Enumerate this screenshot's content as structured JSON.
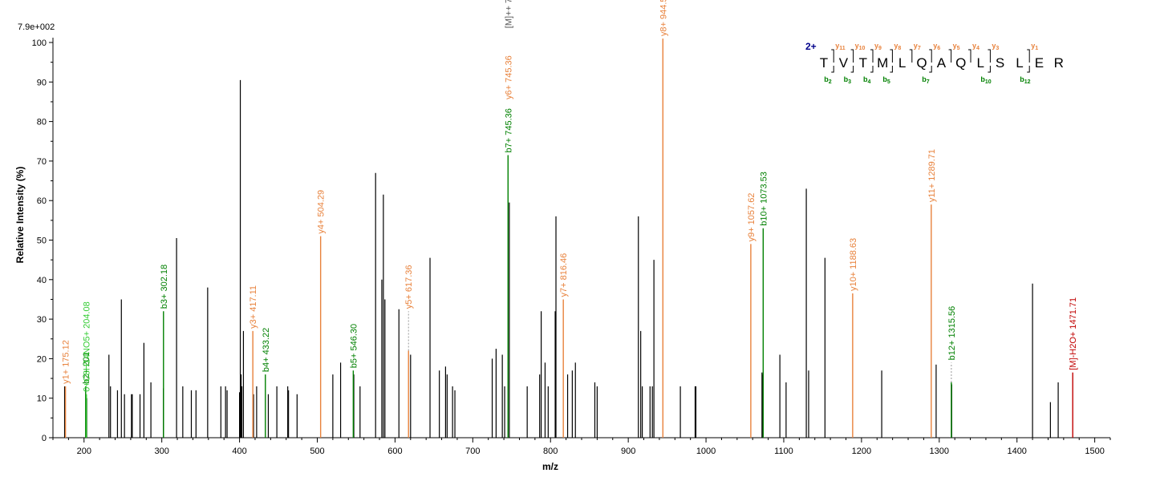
{
  "chart_data": {
    "type": "bar",
    "max_intensity_label": "7.9e+002",
    "xlabel": "m/z",
    "ylabel": "Relative   Intensity (%)",
    "xlim": [
      160,
      1520
    ],
    "ylim": [
      0,
      100
    ],
    "x_ticks": [
      200,
      300,
      400,
      500,
      600,
      700,
      800,
      900,
      1000,
      1100,
      1200,
      1300,
      1400,
      1500
    ],
    "y_ticks": [
      0,
      10,
      20,
      30,
      40,
      50,
      60,
      70,
      80,
      90,
      100
    ],
    "colors": {
      "b": "#008000",
      "y": "#e8823c",
      "other": "#000000",
      "precursor": "#555555",
      "neutral_loss": "#c00000",
      "lightgreen": "#33cc33"
    },
    "unlabeled_peaks": [
      [
        175.0,
        13
      ],
      [
        203.5,
        10
      ],
      [
        232,
        21
      ],
      [
        234,
        13
      ],
      [
        243,
        12
      ],
      [
        248,
        35
      ],
      [
        252,
        11
      ],
      [
        261,
        11
      ],
      [
        262,
        11
      ],
      [
        272,
        11
      ],
      [
        277,
        24
      ],
      [
        286,
        14
      ],
      [
        302,
        12.5
      ],
      [
        319,
        50.5
      ],
      [
        327,
        13
      ],
      [
        338,
        12
      ],
      [
        344,
        12
      ],
      [
        359,
        38
      ],
      [
        376,
        13
      ],
      [
        382,
        13
      ],
      [
        384,
        12
      ],
      [
        400,
        11.5
      ],
      [
        401,
        90.5
      ],
      [
        402,
        16
      ],
      [
        403,
        13
      ],
      [
        405,
        27
      ],
      [
        418,
        11
      ],
      [
        422,
        13
      ],
      [
        437,
        11
      ],
      [
        448,
        13
      ],
      [
        462,
        13
      ],
      [
        463,
        12
      ],
      [
        474,
        11
      ],
      [
        520,
        16
      ],
      [
        530,
        19
      ],
      [
        547,
        16
      ],
      [
        555,
        13
      ],
      [
        575,
        67
      ],
      [
        583,
        40
      ],
      [
        585,
        61.5
      ],
      [
        587,
        35
      ],
      [
        605,
        32.5
      ],
      [
        620,
        21
      ],
      [
        645,
        45.5
      ],
      [
        657,
        17
      ],
      [
        665,
        18
      ],
      [
        667,
        16
      ],
      [
        674,
        13
      ],
      [
        677,
        12
      ],
      [
        725,
        20
      ],
      [
        730,
        22.5
      ],
      [
        738,
        21
      ],
      [
        741,
        13
      ],
      [
        747,
        59.5
      ],
      [
        770,
        13
      ],
      [
        786,
        16
      ],
      [
        788,
        32
      ],
      [
        793,
        19
      ],
      [
        797,
        13
      ],
      [
        806,
        32
      ],
      [
        807,
        56
      ],
      [
        822,
        16
      ],
      [
        828,
        17
      ],
      [
        832,
        19
      ],
      [
        857,
        14
      ],
      [
        860,
        13
      ],
      [
        913,
        56
      ],
      [
        916,
        27
      ],
      [
        918,
        13
      ],
      [
        928,
        13
      ],
      [
        931,
        13
      ],
      [
        933,
        45
      ],
      [
        967,
        13
      ],
      [
        986,
        13
      ],
      [
        987,
        13
      ],
      [
        1072,
        16.5
      ],
      [
        1073,
        16
      ],
      [
        1095,
        21
      ],
      [
        1103,
        14
      ],
      [
        1129,
        63
      ],
      [
        1132,
        17
      ],
      [
        1153,
        45.5
      ],
      [
        1226,
        17
      ],
      [
        1296,
        18.5
      ],
      [
        1316,
        13.5
      ],
      [
        1420,
        39
      ],
      [
        1443,
        9
      ],
      [
        1453,
        14
      ]
    ],
    "annotated_peaks": [
      {
        "mz": 176.12,
        "intensity": 13,
        "ion": "y",
        "label": "y1+ 175.12",
        "label_dy": 0
      },
      {
        "mz": 202.08,
        "intensity": 13,
        "ion": "b",
        "label": "b2+ 201",
        "label_dy": 0
      },
      {
        "mz": 203.08,
        "intensity": 11,
        "ion": "lightgreen",
        "label": "[b2+ 201]0+C8H14NO5+ 204.08",
        "label_dy": 0,
        "draw_label_tail": "0+C8H14NO5+ 204.08"
      },
      {
        "mz": 302.18,
        "intensity": 32,
        "ion": "b",
        "label": "b3+ 302.18",
        "label_dy": 0
      },
      {
        "mz": 417.11,
        "intensity": 27,
        "ion": "y",
        "label": "y3+ 417.11",
        "label_dy": 0
      },
      {
        "mz": 433.22,
        "intensity": 16,
        "ion": "b",
        "label": "b4+ 433.22",
        "label_dy": 0
      },
      {
        "mz": 504.29,
        "intensity": 51,
        "ion": "y",
        "label": "y4+ 504.29",
        "label_dy": 0
      },
      {
        "mz": 546.3,
        "intensity": 17,
        "ion": "b",
        "label": "b5+ 546.30",
        "label_dy": 0
      },
      {
        "mz": 617.36,
        "intensity": 22,
        "ion": "y",
        "label": "y5+ 617.36",
        "label_dy": 0,
        "dashed_to": 32
      },
      {
        "mz": 745.36,
        "intensity": 71.5,
        "ion": "b",
        "label": "b7+ 745.36",
        "label_dy": 0
      },
      {
        "mz": 745.4,
        "intensity": 71.5,
        "ion": "y",
        "label": "y6+ 745.36",
        "label_dy": 0,
        "label_only": true,
        "label_top": 85
      },
      {
        "mz": 745.45,
        "intensity": 71.5,
        "ion": "precursor",
        "label": "[M]++ 7",
        "label_dy": 0,
        "label_only": true,
        "label_top": 103
      },
      {
        "mz": 816.46,
        "intensity": 35,
        "ion": "y",
        "label": "y7+ 816.46",
        "label_dy": 0
      },
      {
        "mz": 944.53,
        "intensity": 101,
        "ion": "y",
        "label": "y8+ 944.53",
        "label_dy": 0
      },
      {
        "mz": 1057.62,
        "intensity": 49,
        "ion": "y",
        "label": "y9+ 1057.62",
        "label_dy": 0
      },
      {
        "mz": 1073.53,
        "intensity": 53,
        "ion": "b",
        "label": "b10+ 1073.53",
        "label_dy": 0
      },
      {
        "mz": 1188.63,
        "intensity": 36.5,
        "ion": "y",
        "label": "y10+ 1188.63",
        "label_dy": 0
      },
      {
        "mz": 1289.71,
        "intensity": 59,
        "ion": "y",
        "label": "y11+ 1289.71",
        "label_dy": 0
      },
      {
        "mz": 1315.56,
        "intensity": 14,
        "ion": "b",
        "label": "b12+ 1315.56",
        "label_dy": 0,
        "dashed_to": 19
      },
      {
        "mz": 1471.71,
        "intensity": 16.5,
        "ion": "neutral_loss",
        "label": "[M]-H2O+ 1471.71",
        "label_dy": 0
      }
    ],
    "sequence": {
      "charge": "2+",
      "residues": [
        "T",
        "V",
        "T",
        "M",
        "L",
        "Q",
        "A",
        "Q",
        "L",
        "S",
        "L",
        "E",
        "R"
      ],
      "y_ions": [
        {
          "after": 1,
          "label": "y",
          "sub": "11"
        },
        {
          "after": 2,
          "label": "y",
          "sub": "10"
        },
        {
          "after": 3,
          "label": "y",
          "sub": "9"
        },
        {
          "after": 4,
          "label": "y",
          "sub": "8"
        },
        {
          "after": 5,
          "label": "y",
          "sub": "7"
        },
        {
          "after": 6,
          "label": "y",
          "sub": "6"
        },
        {
          "after": 7,
          "label": "y",
          "sub": "5"
        },
        {
          "after": 8,
          "label": "y",
          "sub": "4"
        },
        {
          "after": 9,
          "label": "y",
          "sub": "3"
        },
        {
          "after": 11,
          "label": "y",
          "sub": "1"
        }
      ],
      "b_ions": [
        {
          "after": 1,
          "label": "b",
          "sub": "2"
        },
        {
          "after": 2,
          "label": "b",
          "sub": "3"
        },
        {
          "after": 3,
          "label": "b",
          "sub": "4"
        },
        {
          "after": 4,
          "label": "b",
          "sub": "5"
        },
        {
          "after": 6,
          "label": "b",
          "sub": "7"
        },
        {
          "after": 9,
          "label": "b",
          "sub": "10"
        },
        {
          "after": 11,
          "label": "b",
          "sub": "12"
        }
      ]
    }
  }
}
